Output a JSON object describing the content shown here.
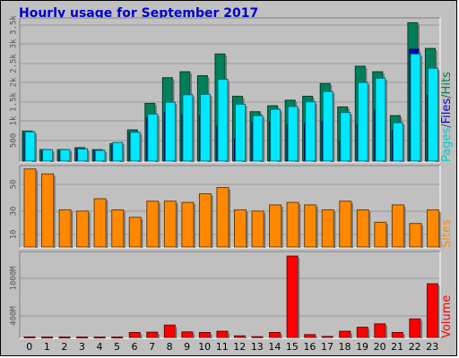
{
  "chart_data": [
    {
      "type": "bar",
      "title": "Hourly usage for September 2017",
      "ylabel_parts": [
        {
          "text": "Pages",
          "color": "#00cccc"
        },
        {
          "text": "/",
          "color": "#555555"
        },
        {
          "text": "Files",
          "color": "#0000cc"
        },
        {
          "text": "/",
          "color": "#555555"
        },
        {
          "text": "Hits",
          "color": "#008040"
        }
      ],
      "categories": [
        "0",
        "1",
        "2",
        "3",
        "4",
        "5",
        "6",
        "7",
        "8",
        "9",
        "10",
        "11",
        "12",
        "13",
        "14",
        "15",
        "16",
        "17",
        "18",
        "19",
        "20",
        "21",
        "22",
        "23"
      ],
      "y_ticks": [
        "500",
        "1k",
        "1.5k",
        "2k",
        "2.5k",
        "3k",
        "3.5k"
      ],
      "ylim": [
        0,
        3600
      ],
      "series": [
        {
          "name": "Hits",
          "color": "#00805a",
          "values": [
            760,
            290,
            290,
            340,
            290,
            440,
            790,
            1460,
            2110,
            2260,
            2160,
            2710,
            1640,
            1250,
            1400,
            1540,
            1640,
            1960,
            1370,
            2400,
            2260,
            1150,
            3500,
            2850
          ]
        },
        {
          "name": "Files",
          "color": "#0000cc",
          "values": [
            700,
            240,
            240,
            300,
            260,
            390,
            720,
            1100,
            1240,
            1170,
            1150,
            890,
            570,
            990,
            980,
            920,
            950,
            1000,
            500,
            920,
            1290,
            780,
            2830,
            1670
          ]
        },
        {
          "name": "Pages",
          "color": "#00e8ff",
          "values": [
            740,
            290,
            290,
            310,
            270,
            470,
            730,
            1190,
            1490,
            1680,
            1690,
            2070,
            1440,
            1150,
            1310,
            1380,
            1500,
            1760,
            1230,
            1990,
            2100,
            970,
            2710,
            2350
          ]
        }
      ]
    },
    {
      "type": "bar",
      "ylabel": "Sites",
      "ylabel_color": "#ff8800",
      "categories": [
        "0",
        "1",
        "2",
        "3",
        "4",
        "5",
        "6",
        "7",
        "8",
        "9",
        "10",
        "11",
        "12",
        "13",
        "14",
        "15",
        "16",
        "17",
        "18",
        "19",
        "20",
        "21",
        "22",
        "23"
      ],
      "y_ticks": [
        "10",
        "30",
        "50"
      ],
      "ylim": [
        0,
        65
      ],
      "series": [
        {
          "name": "Sites",
          "color": "#ff8800",
          "values": [
            63,
            59,
            30,
            29,
            39,
            30,
            24,
            37,
            37,
            36,
            43,
            48,
            30,
            29,
            34,
            36,
            34,
            30,
            37,
            30,
            20,
            34,
            19,
            30
          ]
        }
      ]
    },
    {
      "type": "bar",
      "ylabel": "Volume",
      "ylabel_color": "#ff0000",
      "categories": [
        "0",
        "1",
        "2",
        "3",
        "4",
        "5",
        "6",
        "7",
        "8",
        "9",
        "10",
        "11",
        "12",
        "13",
        "14",
        "15",
        "16",
        "17",
        "18",
        "19",
        "20",
        "21",
        "22",
        "23"
      ],
      "y_ticks": [
        "400M",
        "1000M"
      ],
      "ylim": [
        0,
        1380
      ],
      "series": [
        {
          "name": "Volume",
          "color": "#ff0000",
          "values": [
            8,
            6,
            6,
            6,
            6,
            6,
            80,
            85,
            200,
            90,
            80,
            100,
            25,
            12,
            80,
            1320,
            45,
            15,
            100,
            165,
            220,
            80,
            300,
            870
          ]
        }
      ]
    }
  ]
}
